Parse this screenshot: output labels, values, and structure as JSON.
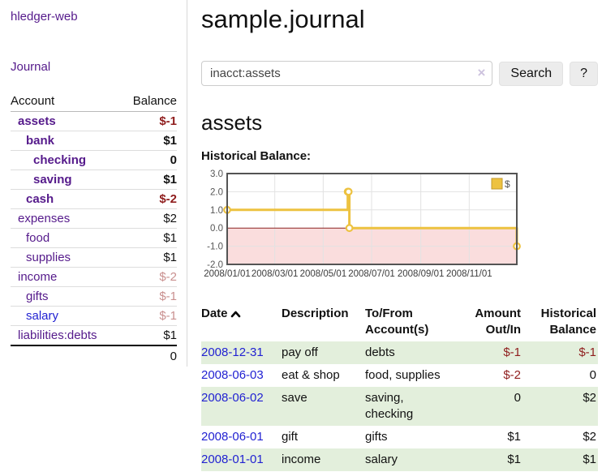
{
  "sidebar": {
    "app_title": "hledger-web",
    "journal_label": "Journal",
    "account_header": "Account",
    "balance_header": "Balance",
    "accounts": [
      {
        "name": "assets",
        "balance": "$-1",
        "indent": 1,
        "bold": true,
        "amount_style": "neg"
      },
      {
        "name": "bank",
        "balance": "$1",
        "indent": 2,
        "bold": true,
        "amount_style": "plain"
      },
      {
        "name": "checking",
        "balance": "0",
        "indent": 3,
        "bold": true,
        "amount_style": "plain"
      },
      {
        "name": "saving",
        "balance": "$1",
        "indent": 3,
        "bold": true,
        "amount_style": "plain"
      },
      {
        "name": "cash",
        "balance": "$-2",
        "indent": 2,
        "bold": true,
        "amount_style": "neg"
      },
      {
        "name": "expenses",
        "balance": "$2",
        "indent": 1,
        "bold": false,
        "amount_style": "plain"
      },
      {
        "name": "food",
        "balance": "$1",
        "indent": 2,
        "bold": false,
        "amount_style": "plain"
      },
      {
        "name": "supplies",
        "balance": "$1",
        "indent": 2,
        "bold": false,
        "amount_style": "plain"
      },
      {
        "name": "income",
        "balance": "$-2",
        "indent": 1,
        "bold": false,
        "amount_style": "neg-muted"
      },
      {
        "name": "gifts",
        "balance": "$-1",
        "indent": 2,
        "bold": false,
        "amount_style": "neg-muted"
      },
      {
        "name": "salary",
        "balance": "$-1",
        "indent": 2,
        "bold": false,
        "amount_style": "neg-muted",
        "link_style": "blue"
      },
      {
        "name": "liabilities:debts",
        "balance": "$1",
        "indent": 1,
        "bold": false,
        "amount_style": "plain"
      }
    ],
    "total": "0"
  },
  "main": {
    "title": "sample.journal",
    "search": {
      "value": "inacct:assets",
      "clear_icon": "×",
      "button_label": "Search",
      "help_label": "?"
    },
    "account_heading": "assets",
    "chart_label": "Historical Balance:"
  },
  "register": {
    "headers": {
      "date": "Date",
      "description": "Description",
      "accounts": "To/From Account(s)",
      "amount": "Amount Out/In",
      "balance": "Historical Balance"
    },
    "rows": [
      {
        "date": "2008-12-31",
        "description": "pay off",
        "accounts": "debts",
        "amount": "$-1",
        "amount_neg": true,
        "balance": "$-1",
        "balance_neg": true
      },
      {
        "date": "2008-06-03",
        "description": "eat & shop",
        "accounts": "food, supplies",
        "amount": "$-2",
        "amount_neg": true,
        "balance": "0",
        "balance_neg": false
      },
      {
        "date": "2008-06-02",
        "description": "save",
        "accounts": "saving, checking",
        "amount": "0",
        "amount_neg": false,
        "balance": "$2",
        "balance_neg": false
      },
      {
        "date": "2008-06-01",
        "description": "gift",
        "accounts": "gifts",
        "amount": "$1",
        "amount_neg": false,
        "balance": "$2",
        "balance_neg": false
      },
      {
        "date": "2008-01-01",
        "description": "income",
        "accounts": "salary",
        "amount": "$1",
        "amount_neg": false,
        "balance": "$1",
        "balance_neg": false
      }
    ]
  },
  "chart_data": {
    "type": "line",
    "title": "Historical Balance",
    "step": true,
    "series": [
      {
        "name": "$",
        "color": "#edc240",
        "points": [
          [
            "2008-01-01",
            1
          ],
          [
            "2008-06-01",
            2
          ],
          [
            "2008-06-02",
            2
          ],
          [
            "2008-06-03",
            0
          ],
          [
            "2008-12-31",
            -1
          ]
        ]
      }
    ],
    "x_range": [
      "2008-01-01",
      "2008-12-31"
    ],
    "x_ticks": [
      "2008/01/01",
      "2008/03/01",
      "2008/05/01",
      "2008/07/01",
      "2008/09/01",
      "2008/11/01"
    ],
    "y_ticks": [
      3.0,
      2.0,
      1.0,
      0.0,
      -1.0,
      -2.0
    ],
    "ylim": [
      -2,
      3
    ],
    "grid": true,
    "negative_region": {
      "from": -2,
      "to": 0,
      "fill": "#fadddd",
      "line_color": "#8b2322"
    },
    "legend": {
      "label": "$",
      "position": "top-right"
    }
  },
  "colors": {
    "link_purple": "#551a8b",
    "link_blue": "#2222d2",
    "negative_dark": "#8f1d1d",
    "negative_muted": "#c9908f",
    "row_green": "#e3efdc",
    "series_gold": "#edc240",
    "negative_region_fill": "#fadddd",
    "zero_line_red": "#8b2322"
  }
}
